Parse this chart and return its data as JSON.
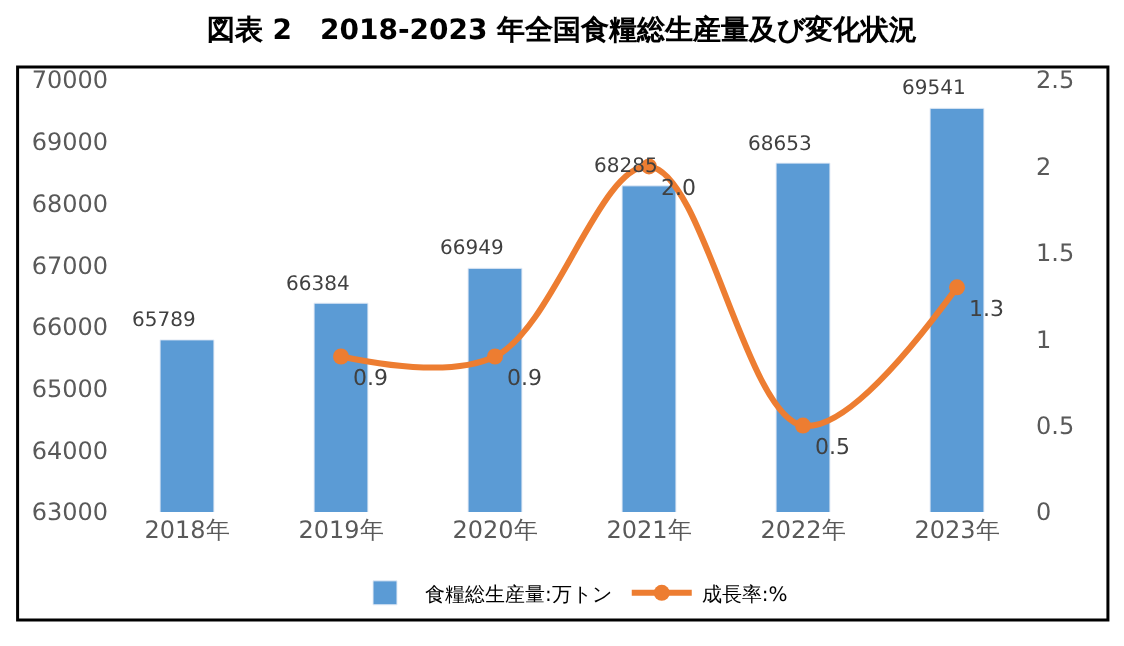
{
  "chart_data": {
    "type": "bar",
    "title": "図表 2　2018-2023 年全国食糧総生産量及び変化状況",
    "categories": [
      "2018年",
      "2019年",
      "2020年",
      "2021年",
      "2022年",
      "2023年"
    ],
    "series": [
      {
        "name": "食糧総生産量:万トン",
        "type": "bar",
        "color": "#5b9bd5",
        "values": [
          65789,
          66384,
          66949,
          68285,
          68653,
          69541
        ],
        "value_labels": [
          "65789",
          "66384",
          "66949",
          "68285",
          "68653",
          "69541"
        ]
      },
      {
        "name": "成長率:%",
        "type": "line",
        "axis": "y2",
        "color": "#ed7d31",
        "marker": "circle",
        "values": [
          null,
          0.9,
          0.9,
          2.0,
          0.5,
          1.3
        ],
        "value_labels": [
          null,
          "0.9",
          "0.9",
          "2.0",
          "0.5",
          "1.3"
        ]
      }
    ],
    "ylim": [
      63000,
      70000
    ],
    "yticks": [
      63000,
      64000,
      65000,
      66000,
      67000,
      68000,
      69000,
      70000
    ],
    "y2lim": [
      0,
      2.5
    ],
    "y2ticks": [
      0,
      0.5,
      1,
      1.5,
      2,
      2.5
    ],
    "legend": "bottom"
  }
}
